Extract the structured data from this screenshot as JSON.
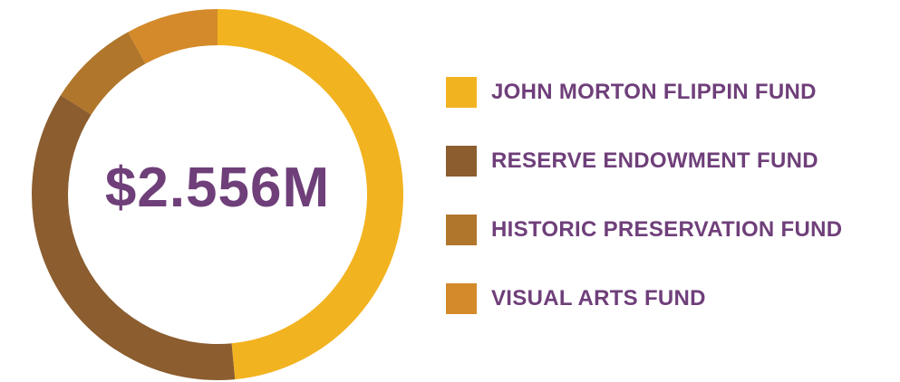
{
  "total_label": "$2.556M",
  "chart_data": {
    "type": "pie",
    "donut": true,
    "title": "",
    "center_text": "$2.556M",
    "categories": [
      "JOHN MORTON FLIPPIN FUND",
      "RESERVE ENDOWMENT FUND",
      "HISTORIC PRESERVATION FUND",
      "VISUAL ARTS FUND"
    ],
    "values": [
      48.5,
      35.5,
      8.0,
      8.0
    ],
    "colors": [
      "#f2b320",
      "#8b5d2f",
      "#b0762b",
      "#d48a2a"
    ],
    "legend_position": "right"
  }
}
